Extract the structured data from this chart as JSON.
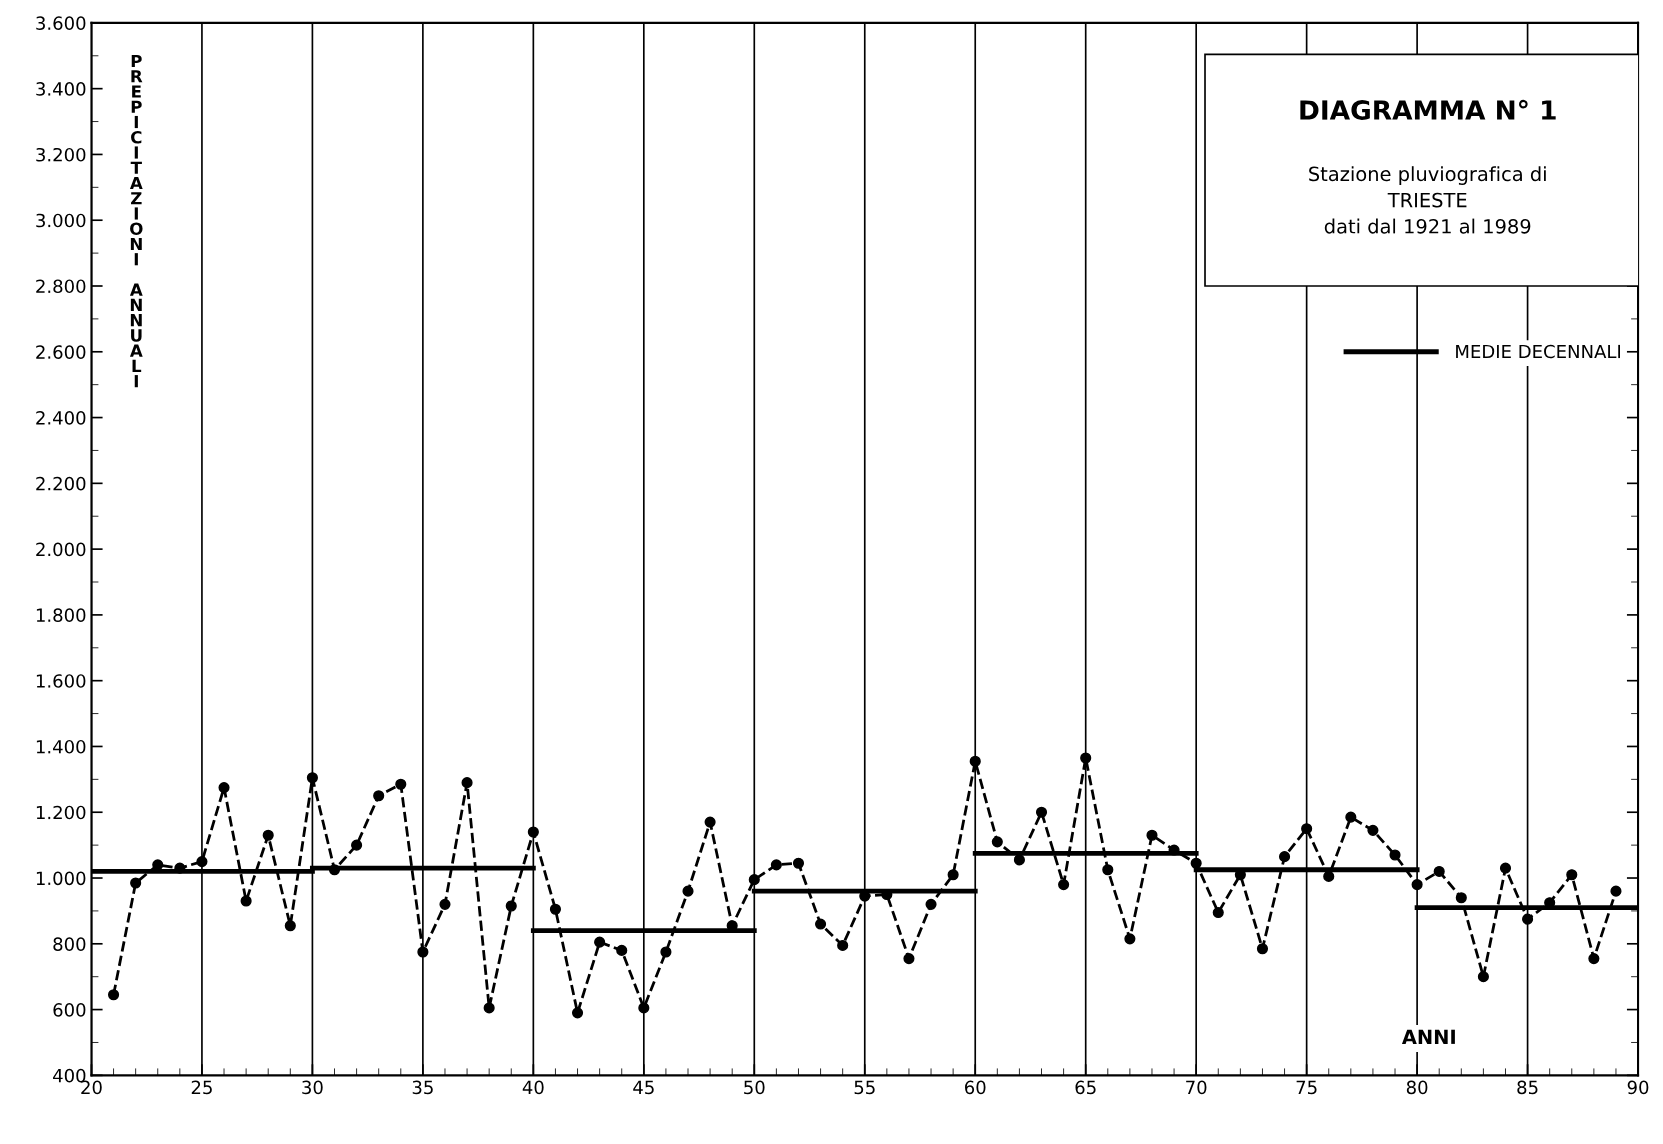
{
  "chart_data": {
    "type": "line",
    "title": "DIAGRAMMA N° 1",
    "subtitle": "Stazione pluviografica di\nTRIESTE\ndati dal 1921 al 1989",
    "xlabel": "ANNI",
    "ylabel": "PREPICITAZIONI ANNUALI",
    "xlim": [
      20,
      90
    ],
    "xticks": [
      20,
      25,
      30,
      35,
      40,
      45,
      50,
      55,
      60,
      65,
      70,
      75,
      80,
      85,
      90
    ],
    "ylim": [
      400,
      3600
    ],
    "yticks": [
      {
        "value": 400,
        "label": "400"
      },
      {
        "value": 600,
        "label": "600"
      },
      {
        "value": 800,
        "label": "800"
      },
      {
        "value": 1000,
        "label": "1.000"
      },
      {
        "value": 1200,
        "label": "1.200"
      },
      {
        "value": 1400,
        "label": "1.400"
      },
      {
        "value": 1600,
        "label": "1.600"
      },
      {
        "value": 1800,
        "label": "1.800"
      },
      {
        "value": 2000,
        "label": "2.000"
      },
      {
        "value": 2200,
        "label": "2.200"
      },
      {
        "value": 2400,
        "label": "2.400"
      },
      {
        "value": 2600,
        "label": "2.600"
      },
      {
        "value": 2800,
        "label": "2.800"
      },
      {
        "value": 3000,
        "label": "3.000"
      },
      {
        "value": 3200,
        "label": "3.200"
      },
      {
        "value": 3400,
        "label": "3.400"
      },
      {
        "value": 3600,
        "label": "3.600"
      }
    ],
    "grid": "x",
    "legend": "top right",
    "series": [
      {
        "color": "#000000",
        "marker": "circle",
        "line_style": "dashed",
        "x": [
          21,
          22,
          23,
          24,
          25,
          26,
          27,
          28,
          29,
          30,
          31,
          32,
          33,
          34,
          35,
          36,
          37,
          38,
          39,
          40,
          41,
          42,
          43,
          44,
          45,
          46,
          47,
          48,
          49,
          50,
          51,
          52,
          53,
          54,
          55,
          56,
          57,
          58,
          59,
          60,
          61,
          62,
          63,
          64,
          65,
          66,
          67,
          68,
          69,
          70,
          71,
          72,
          73,
          74,
          75,
          76,
          77,
          78,
          79,
          80,
          81,
          82,
          83,
          84,
          85,
          86,
          87,
          88,
          89
        ],
        "values": [
          645,
          985,
          1040,
          1030,
          1050,
          1275,
          930,
          1130,
          855,
          1305,
          1025,
          1100,
          1250,
          1285,
          775,
          920,
          1290,
          605,
          915,
          1140,
          905,
          590,
          805,
          780,
          605,
          775,
          960,
          1170,
          855,
          995,
          1040,
          1045,
          860,
          795,
          945,
          950,
          755,
          920,
          1010,
          1355,
          1110,
          1055,
          1200,
          980,
          1365,
          1025,
          815,
          1130,
          1085,
          1045,
          895,
          1010,
          785,
          1065,
          1150,
          1005,
          1185,
          1145,
          1070,
          980,
          1020,
          940,
          700,
          1030,
          875,
          925,
          1010,
          755,
          960
        ]
      },
      {
        "name": "MEDIE DECENNALI",
        "color": "#000000",
        "marker": "none",
        "line_style": "solid",
        "x": [
          20,
          30
        ],
        "values": [
          1020,
          1020
        ]
      },
      {
        "color": "#000000",
        "marker": "none",
        "line_style": "solid",
        "x": [
          30,
          40
        ],
        "values": [
          1030,
          1030
        ]
      },
      {
        "color": "#000000",
        "marker": "none",
        "line_style": "solid",
        "x": [
          40,
          50
        ],
        "values": [
          840,
          840
        ]
      },
      {
        "color": "#000000",
        "marker": "none",
        "line_style": "solid",
        "x": [
          50,
          60
        ],
        "values": [
          960,
          960
        ]
      },
      {
        "color": "#000000",
        "marker": "none",
        "line_style": "solid",
        "x": [
          60,
          70
        ],
        "values": [
          1075,
          1075
        ]
      },
      {
        "color": "#000000",
        "marker": "none",
        "line_style": "solid",
        "x": [
          70,
          80
        ],
        "values": [
          1025,
          1025
        ]
      },
      {
        "color": "#000000",
        "marker": "none",
        "line_style": "solid",
        "x": [
          80,
          90
        ],
        "values": [
          910,
          910
        ]
      }
    ]
  }
}
